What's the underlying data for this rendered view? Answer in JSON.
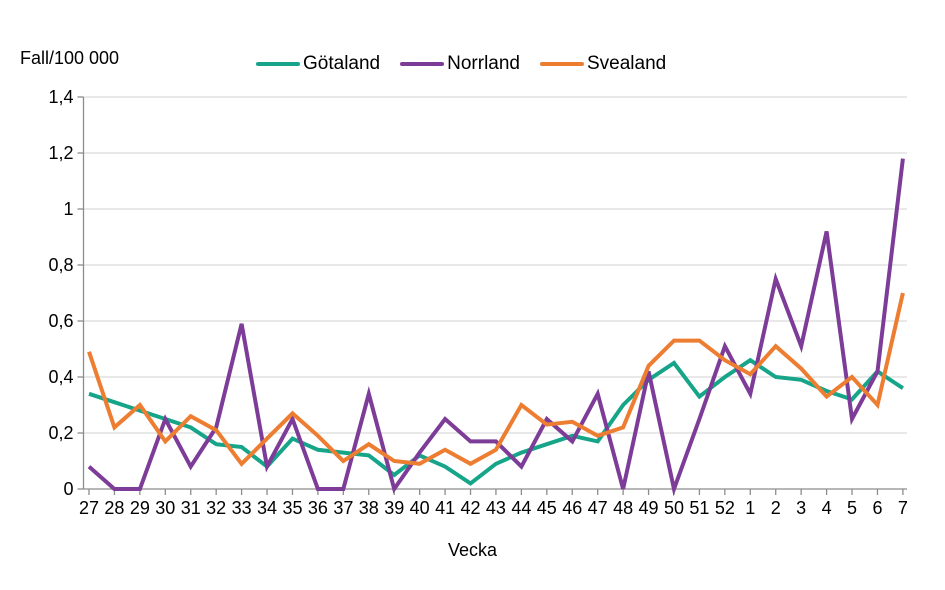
{
  "chart": {
    "y_axis_title": "Fall/100 000",
    "x_axis_title": "Vecka"
  },
  "chart_data": {
    "type": "line",
    "title": "Fall/100 000",
    "xlabel": "Vecka",
    "ylabel": "Fall/100 000",
    "ylim": [
      0,
      1.4
    ],
    "y_tick_step": 0.2,
    "y_tick_labels": [
      "0",
      "0,2",
      "0,4",
      "0,6",
      "0,8",
      "1",
      "1,2",
      "1,4"
    ],
    "grid": "horizontal",
    "legend_position": "top",
    "x_tick_labels": [
      "27",
      "28",
      "29",
      "30",
      "31",
      "32",
      "33",
      "34",
      "35",
      "36",
      "37",
      "38",
      "39",
      "40",
      "41",
      "42",
      "43",
      "44",
      "45",
      "46",
      "47",
      "48",
      "49",
      "50",
      "51",
      "52",
      "1",
      "2",
      "3",
      "4",
      "5",
      "6",
      "7"
    ],
    "series": [
      {
        "id": "gotaland",
        "name": "Götaland",
        "color": "#17A589",
        "values": [
          0.34,
          0.31,
          0.28,
          0.25,
          0.22,
          0.16,
          0.15,
          0.08,
          0.18,
          0.14,
          0.13,
          0.12,
          0.05,
          0.12,
          0.08,
          0.02,
          0.09,
          0.13,
          0.16,
          0.19,
          0.17,
          0.3,
          0.39,
          0.45,
          0.33,
          0.4,
          0.46,
          0.4,
          0.39,
          0.35,
          0.32,
          0.42,
          0.36
        ]
      },
      {
        "id": "norrland",
        "name": "Norrland",
        "color": "#7D3C98",
        "values": [
          0.08,
          0.0,
          0.0,
          0.25,
          0.08,
          0.22,
          0.59,
          0.08,
          0.25,
          0.0,
          0.0,
          0.34,
          0.0,
          0.13,
          0.25,
          0.17,
          0.17,
          0.08,
          0.25,
          0.17,
          0.34,
          0.0,
          0.42,
          0.0,
          0.25,
          0.51,
          0.34,
          0.75,
          0.51,
          0.92,
          0.25,
          0.42,
          1.18
        ]
      },
      {
        "id": "svealand",
        "name": "Svealand",
        "color": "#ED7D31",
        "values": [
          0.49,
          0.22,
          0.3,
          0.17,
          0.26,
          0.21,
          0.09,
          0.18,
          0.27,
          0.19,
          0.1,
          0.16,
          0.1,
          0.09,
          0.14,
          0.09,
          0.14,
          0.3,
          0.23,
          0.24,
          0.19,
          0.22,
          0.44,
          0.53,
          0.53,
          0.46,
          0.41,
          0.51,
          0.43,
          0.33,
          0.4,
          0.3,
          0.7
        ]
      }
    ],
    "style": {
      "axis_color": "#8C8C8C",
      "grid_color": "#D9D9D9",
      "line_width": 4
    }
  }
}
